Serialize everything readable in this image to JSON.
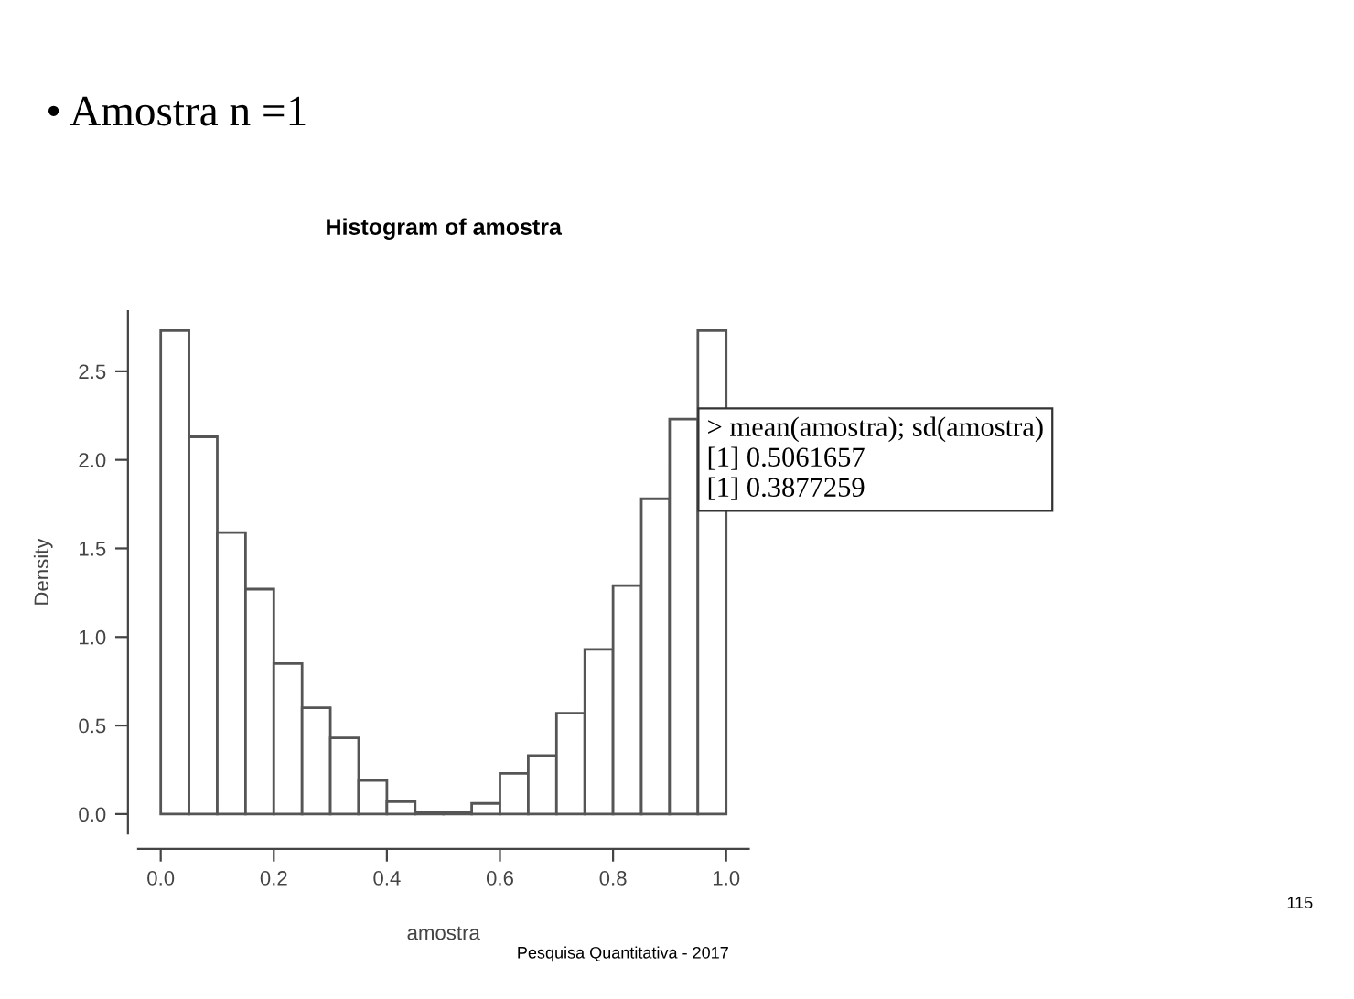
{
  "chart_data": {
    "type": "histogram",
    "title": "Histogram of amostra",
    "subtitle": "• Amostra n =1",
    "xlabel": "amostra",
    "ylabel": "Density",
    "bins": [
      0,
      0.05,
      0.1,
      0.15,
      0.2,
      0.25,
      0.3,
      0.35,
      0.4,
      0.45,
      0.5,
      0.55,
      0.6,
      0.65,
      0.7,
      0.75,
      0.8,
      0.85,
      0.9,
      0.95,
      1.0
    ],
    "values": [
      2.73,
      2.13,
      1.59,
      1.27,
      0.85,
      0.6,
      0.43,
      0.19,
      0.07,
      0.01,
      0.01,
      0.06,
      0.23,
      0.33,
      0.57,
      0.93,
      1.29,
      1.78,
      2.23,
      2.73
    ],
    "color": "#ffffff",
    "xlim": [
      -0.04,
      1.04
    ],
    "ylim": [
      -0.11,
      2.84
    ],
    "xticks": [
      {
        "value": 0,
        "label": "0.0"
      },
      0.2,
      0.4,
      0.6,
      0.8,
      {
        "value": 1,
        "label": "1.0"
      }
    ],
    "yticks": [
      {
        "value": 0,
        "label": "0.0"
      },
      0.5,
      {
        "value": 1,
        "label": "1.0"
      },
      1.5,
      {
        "value": 2,
        "label": "2.0"
      },
      2.5
    ],
    "grid": false,
    "legend": false,
    "annotations": [
      "> mean(amostra); sd(amostra)\n[1] 0.5061657\n[1] 0.3877259",
      "Pesquisa Quantitativa - 2017",
      "115"
    ]
  }
}
